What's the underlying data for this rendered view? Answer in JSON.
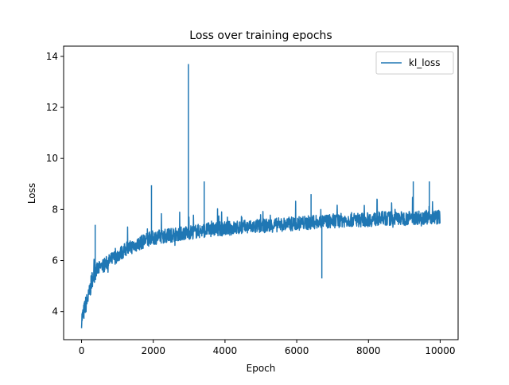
{
  "chart_data": {
    "type": "line",
    "title": "Loss over training epochs",
    "xlabel": "Epoch",
    "ylabel": "Loss",
    "xlim": [
      -500,
      10500
    ],
    "ylim": [
      2.9,
      14.4
    ],
    "xticks": [
      0,
      2000,
      4000,
      6000,
      8000,
      10000
    ],
    "yticks": [
      4,
      6,
      8,
      10,
      12,
      14
    ],
    "grid": false,
    "legend_position": "top-right",
    "series": [
      {
        "name": "kl_loss",
        "color": "#1f77b4",
        "x": [
          0,
          50,
          100,
          200,
          300,
          400,
          600,
          800,
          1000,
          1200,
          1500,
          1800,
          2000,
          2500,
          3000,
          3500,
          4000,
          4500,
          5000,
          5500,
          6000,
          6500,
          7000,
          7500,
          8000,
          8500,
          9000,
          9500,
          10000
        ],
        "y": [
          3.7,
          3.9,
          4.2,
          4.6,
          5.3,
          5.6,
          5.8,
          6.0,
          6.2,
          6.4,
          6.6,
          6.8,
          6.9,
          7.0,
          7.1,
          7.2,
          7.25,
          7.3,
          7.35,
          7.4,
          7.45,
          7.5,
          7.55,
          7.6,
          7.6,
          7.65,
          7.65,
          7.7,
          7.7
        ],
        "spikes": [
          {
            "x": 380,
            "y": 7.4
          },
          {
            "x": 1950,
            "y": 8.95
          },
          {
            "x": 2980,
            "y": 13.7
          },
          {
            "x": 3420,
            "y": 9.1
          },
          {
            "x": 6400,
            "y": 8.6
          },
          {
            "x": 6700,
            "y": 5.3
          },
          {
            "x": 9250,
            "y": 9.1
          },
          {
            "x": 9700,
            "y": 9.1
          }
        ]
      }
    ]
  }
}
